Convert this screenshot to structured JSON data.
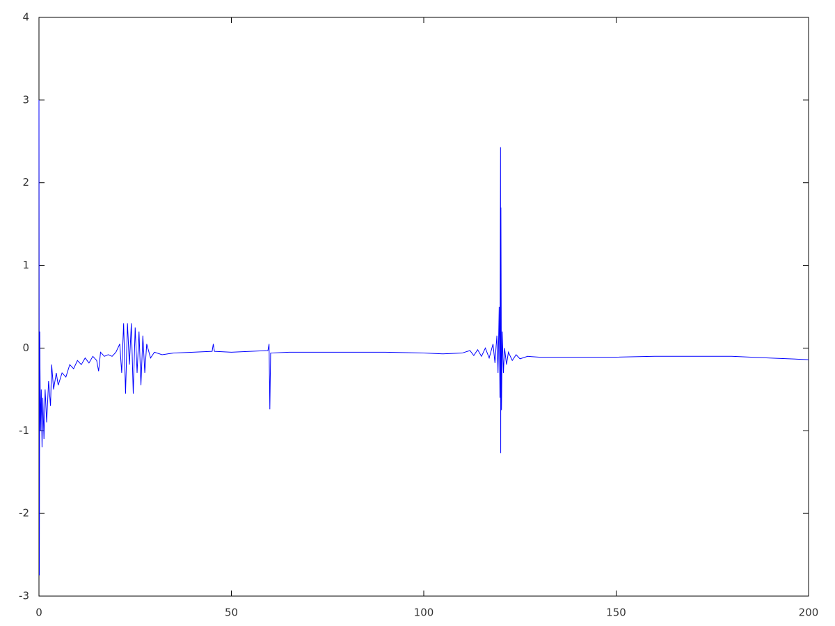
{
  "chart_data": {
    "type": "line",
    "x": [
      0,
      0.1,
      0.2,
      0.4,
      0.6,
      0.8,
      1.0,
      1.3,
      1.6,
      2,
      2.5,
      3,
      3.3,
      3.8,
      4.5,
      5,
      6,
      7,
      8,
      9,
      10,
      11,
      12,
      13,
      14,
      15,
      15.5,
      16,
      17,
      18,
      19,
      20,
      21,
      21.5,
      22,
      22.5,
      23,
      23.5,
      24,
      24.5,
      25,
      25.5,
      26,
      26.5,
      27,
      27.5,
      28,
      29,
      30,
      32,
      35,
      40,
      45,
      45.3,
      45.6,
      50,
      55,
      59.5,
      59.8,
      60,
      60.2,
      65,
      70,
      80,
      90,
      100,
      105,
      110,
      112,
      113,
      114,
      115,
      116,
      117,
      118,
      118.5,
      119,
      119.3,
      119.6,
      119.8,
      119.95,
      120.0,
      120.05,
      120.2,
      120.4,
      120.7,
      121,
      121.5,
      122,
      123,
      124,
      125,
      127,
      130,
      140,
      150,
      160,
      170,
      180,
      185,
      190,
      195,
      200
    ],
    "series": [
      {
        "color": "#0000ff",
        "values": [
          3.0,
          -2.75,
          0.2,
          -1.0,
          -0.5,
          -1.2,
          -0.6,
          -1.1,
          -0.5,
          -0.9,
          -0.4,
          -0.7,
          -0.2,
          -0.5,
          -0.3,
          -0.45,
          -0.3,
          -0.35,
          -0.2,
          -0.25,
          -0.15,
          -0.2,
          -0.12,
          -0.18,
          -0.1,
          -0.15,
          -0.28,
          -0.05,
          -0.1,
          -0.08,
          -0.1,
          -0.05,
          0.05,
          -0.3,
          0.3,
          -0.55,
          0.3,
          -0.2,
          0.3,
          -0.55,
          0.25,
          -0.3,
          0.2,
          -0.45,
          0.15,
          -0.3,
          0.05,
          -0.12,
          -0.05,
          -0.08,
          -0.06,
          -0.05,
          -0.04,
          0.05,
          -0.04,
          -0.05,
          -0.04,
          -0.03,
          0.05,
          -0.74,
          -0.06,
          -0.05,
          -0.05,
          -0.05,
          -0.05,
          -0.06,
          -0.07,
          -0.06,
          -0.03,
          -0.09,
          -0.02,
          -0.1,
          0.0,
          -0.12,
          0.05,
          -0.18,
          0.15,
          -0.3,
          0.5,
          -0.6,
          2.43,
          -1.27,
          1.7,
          -0.75,
          0.2,
          -0.3,
          0.0,
          -0.2,
          -0.05,
          -0.15,
          -0.08,
          -0.13,
          -0.1,
          -0.11,
          -0.11,
          -0.11,
          -0.1,
          -0.1,
          -0.1,
          -0.11,
          -0.12,
          -0.13,
          -0.14
        ]
      }
    ],
    "xlim": [
      0,
      200
    ],
    "xticks": [
      0,
      50,
      100,
      150,
      200
    ],
    "ylim": [
      -3,
      4
    ],
    "yticks": [
      -3,
      -2,
      -1,
      0,
      1,
      2,
      3,
      4
    ]
  }
}
